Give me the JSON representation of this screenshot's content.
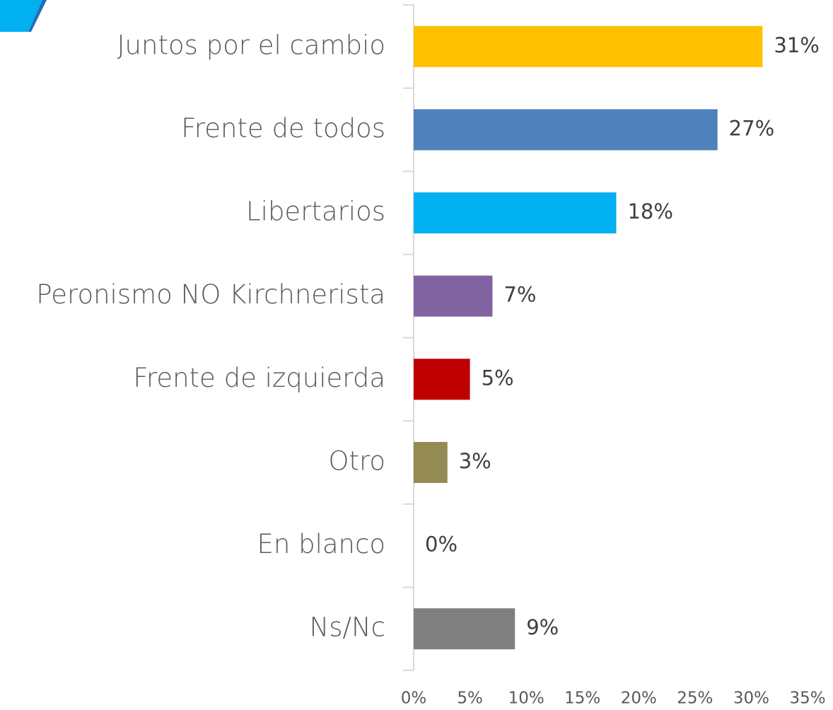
{
  "chart_data": {
    "type": "barh",
    "categories": [
      "Juntos por el cambio",
      "Frente de todos",
      "Libertarios",
      "Peronismo NO Kirchnerista",
      "Frente de izquierda",
      "Otro",
      "En blanco",
      "Ns/Nc"
    ],
    "values": [
      31,
      27,
      18,
      7,
      5,
      3,
      0,
      9
    ],
    "value_labels": [
      "31%",
      "27%",
      "18%",
      "7%",
      "5%",
      "3%",
      "0%",
      "9%"
    ],
    "colors": [
      "#FFC000",
      "#4F81BD",
      "#00B0F0",
      "#8064A2",
      "#C00000",
      "#948A54",
      "#808080",
      "#808080"
    ],
    "xlim": [
      0,
      35
    ],
    "xticks": [
      {
        "value": 0,
        "label": "0%"
      },
      {
        "value": 5,
        "label": "5%"
      },
      {
        "value": 10,
        "label": "10%"
      },
      {
        "value": 15,
        "label": "15%"
      },
      {
        "value": 20,
        "label": "20%"
      },
      {
        "value": 25,
        "label": "25%"
      },
      {
        "value": 30,
        "label": "30%"
      },
      {
        "value": 35,
        "label": "35%"
      }
    ],
    "grid": false
  }
}
